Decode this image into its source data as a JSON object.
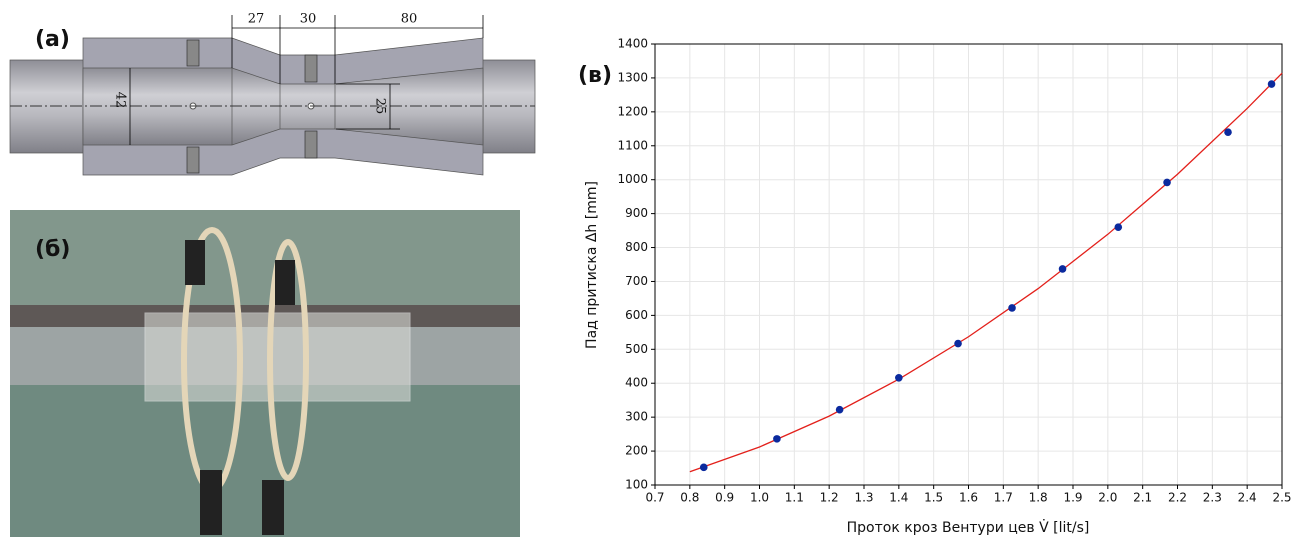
{
  "figure": {
    "panel_a": "(а)",
    "panel_b": "(б)",
    "panel_c": "(в)",
    "dimensions": [
      "27",
      "30",
      "80",
      "42",
      "25"
    ]
  },
  "chart_data": {
    "type": "scatter",
    "xlabel": "Проток кроз Вентури цев V̇ [lit/s]",
    "ylabel": "Пад притиска Δh [mm]",
    "xlim": [
      0.7,
      2.5
    ],
    "ylim": [
      100,
      1400
    ],
    "xticks": [
      0.7,
      0.8,
      0.9,
      {
        "value": 1.0,
        "label": "1.0"
      },
      1.1,
      1.2,
      1.3,
      1.4,
      1.5,
      1.6,
      1.7,
      1.8,
      1.9,
      {
        "value": 2.0,
        "label": "2.0"
      },
      2.1,
      2.2,
      2.3,
      2.4,
      2.5
    ],
    "yticks": [
      100,
      200,
      300,
      400,
      500,
      600,
      700,
      800,
      900,
      1000,
      1100,
      1200,
      1300,
      1400
    ],
    "grid": true,
    "series": [
      {
        "type": "line",
        "color": "#e3201b",
        "x": [
          0.8,
          1.0,
          1.2,
          1.4,
          1.6,
          1.8,
          2.0,
          2.2,
          2.4,
          2.5
        ],
        "values": [
          139,
          212,
          303,
          412,
          537,
          679,
          839,
          1016,
          1210,
          1314
        ]
      },
      {
        "type": "scatter",
        "color": "#0b2a9e",
        "x": [
          0.84,
          1.05,
          1.23,
          1.4,
          1.57,
          1.725,
          1.87,
          2.03,
          2.17,
          2.345,
          2.47
        ],
        "values": [
          152,
          236,
          322,
          416,
          517,
          622,
          737,
          860,
          992,
          1140,
          1282
        ]
      }
    ]
  }
}
